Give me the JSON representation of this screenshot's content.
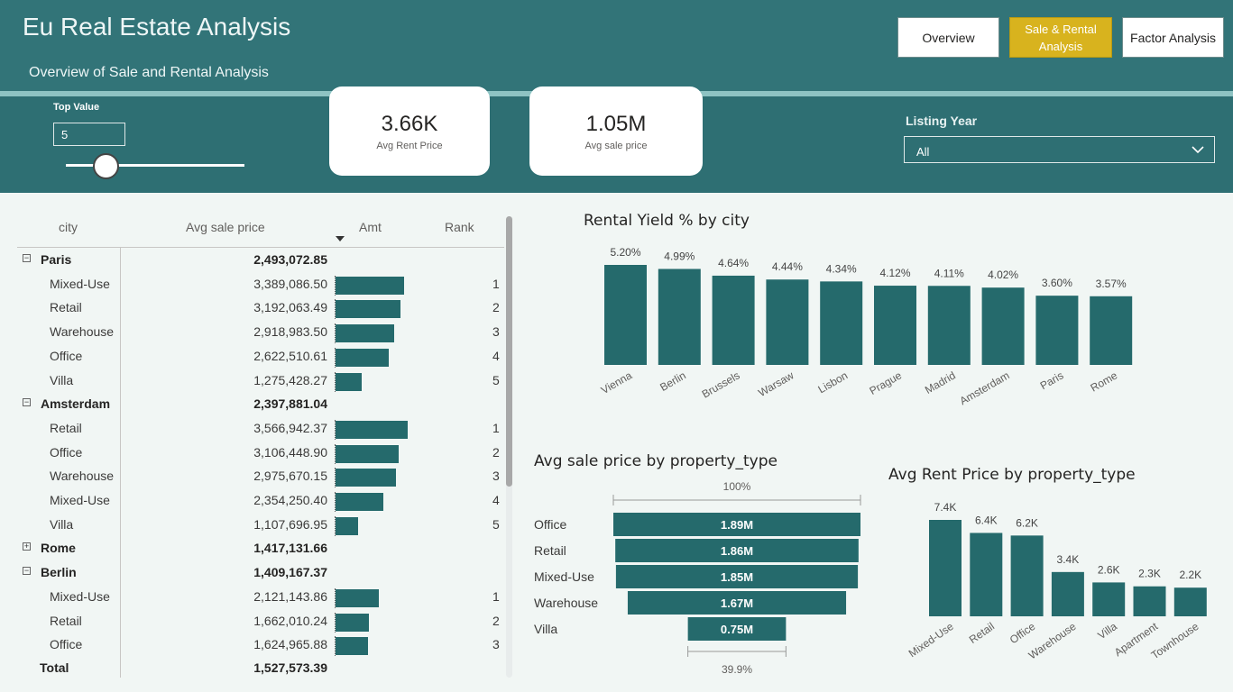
{
  "header": {
    "title": "Eu Real Estate Analysis",
    "subtitle": "Overview of Sale and Rental Analysis"
  },
  "nav": {
    "overview": "Overview",
    "sale_rental": "Sale & Rental Analysis",
    "factor": "Factor Analysis"
  },
  "top_value": {
    "label": "Top Value",
    "value": "5"
  },
  "cards": {
    "rent": {
      "value": "3.66K",
      "label": "Avg Rent Price"
    },
    "sale": {
      "value": "1.05M",
      "label": "Avg sale price"
    }
  },
  "listing_year": {
    "label": "Listing Year",
    "value": "All"
  },
  "matrix": {
    "headers": {
      "city": "city",
      "price": "Avg sale price",
      "amt": "Amt",
      "rank": "Rank"
    },
    "rows": [
      {
        "kind": "group",
        "name": "Paris",
        "price": "2,493,072.85",
        "expanded": true
      },
      {
        "kind": "child",
        "name": "Mixed-Use",
        "price": "3,389,086.50",
        "amt": 3389086.5,
        "rank": "1"
      },
      {
        "kind": "child",
        "name": "Retail",
        "price": "3,192,063.49",
        "amt": 3192063.49,
        "rank": "2"
      },
      {
        "kind": "child",
        "name": "Warehouse",
        "price": "2,918,983.50",
        "amt": 2918983.5,
        "rank": "3"
      },
      {
        "kind": "child",
        "name": "Office",
        "price": "2,622,510.61",
        "amt": 2622510.61,
        "rank": "4"
      },
      {
        "kind": "child",
        "name": "Villa",
        "price": "1,275,428.27",
        "amt": 1275428.27,
        "rank": "5"
      },
      {
        "kind": "group",
        "name": "Amsterdam",
        "price": "2,397,881.04",
        "expanded": true
      },
      {
        "kind": "child",
        "name": "Retail",
        "price": "3,566,942.37",
        "amt": 3566942.37,
        "rank": "1"
      },
      {
        "kind": "child",
        "name": "Office",
        "price": "3,106,448.90",
        "amt": 3106448.9,
        "rank": "2"
      },
      {
        "kind": "child",
        "name": "Warehouse",
        "price": "2,975,670.15",
        "amt": 2975670.15,
        "rank": "3"
      },
      {
        "kind": "child",
        "name": "Mixed-Use",
        "price": "2,354,250.40",
        "amt": 2354250.4,
        "rank": "4"
      },
      {
        "kind": "child",
        "name": "Villa",
        "price": "1,107,696.95",
        "amt": 1107696.95,
        "rank": "5"
      },
      {
        "kind": "group",
        "name": "Rome",
        "price": "1,417,131.66",
        "expanded": false
      },
      {
        "kind": "group",
        "name": "Berlin",
        "price": "1,409,167.37",
        "expanded": true
      },
      {
        "kind": "child",
        "name": "Mixed-Use",
        "price": "2,121,143.86",
        "amt": 2121143.86,
        "rank": "1"
      },
      {
        "kind": "child",
        "name": "Retail",
        "price": "1,662,010.24",
        "amt": 1662010.24,
        "rank": "2"
      },
      {
        "kind": "child",
        "name": "Office",
        "price": "1,624,965.88",
        "amt": 1624965.88,
        "rank": "3"
      }
    ],
    "total": {
      "name": "Total",
      "price": "1,527,573.39"
    }
  },
  "chart_data": [
    {
      "type": "bar",
      "title": "Rental Yield % by city",
      "categories": [
        "Vienna",
        "Berlin",
        "Brussels",
        "Warsaw",
        "Lisbon",
        "Prague",
        "Madrid",
        "Amsterdam",
        "Paris",
        "Rome"
      ],
      "values": [
        5.2,
        4.99,
        4.64,
        4.44,
        4.34,
        4.12,
        4.11,
        4.02,
        3.6,
        3.57
      ],
      "labels": [
        "5.20%",
        "4.99%",
        "4.64%",
        "4.44%",
        "4.34%",
        "4.12%",
        "4.11%",
        "4.02%",
        "3.60%",
        "3.57%"
      ],
      "color": "#256a6c"
    },
    {
      "type": "bar",
      "orientation": "funnel",
      "title": "Avg sale price by property_type",
      "categories": [
        "Office",
        "Retail",
        "Mixed-Use",
        "Warehouse",
        "Villa"
      ],
      "values": [
        1.89,
        1.86,
        1.85,
        1.67,
        0.75
      ],
      "labels": [
        "1.89M",
        "1.86M",
        "1.85M",
        "1.67M",
        "0.75M"
      ],
      "top_pct": "100%",
      "bottom_pct": "39.9%",
      "color": "#256a6c"
    },
    {
      "type": "bar",
      "title": "Avg Rent Price by property_type",
      "categories": [
        "Mixed-Use",
        "Retail",
        "Office",
        "Warehouse",
        "Villa",
        "Apartment",
        "Townhouse"
      ],
      "values": [
        7.4,
        6.4,
        6.2,
        3.4,
        2.6,
        2.3,
        2.2
      ],
      "labels": [
        "7.4K",
        "6.4K",
        "6.2K",
        "3.4K",
        "2.6K",
        "2.3K",
        "2.2K"
      ],
      "color": "#256a6c"
    }
  ]
}
